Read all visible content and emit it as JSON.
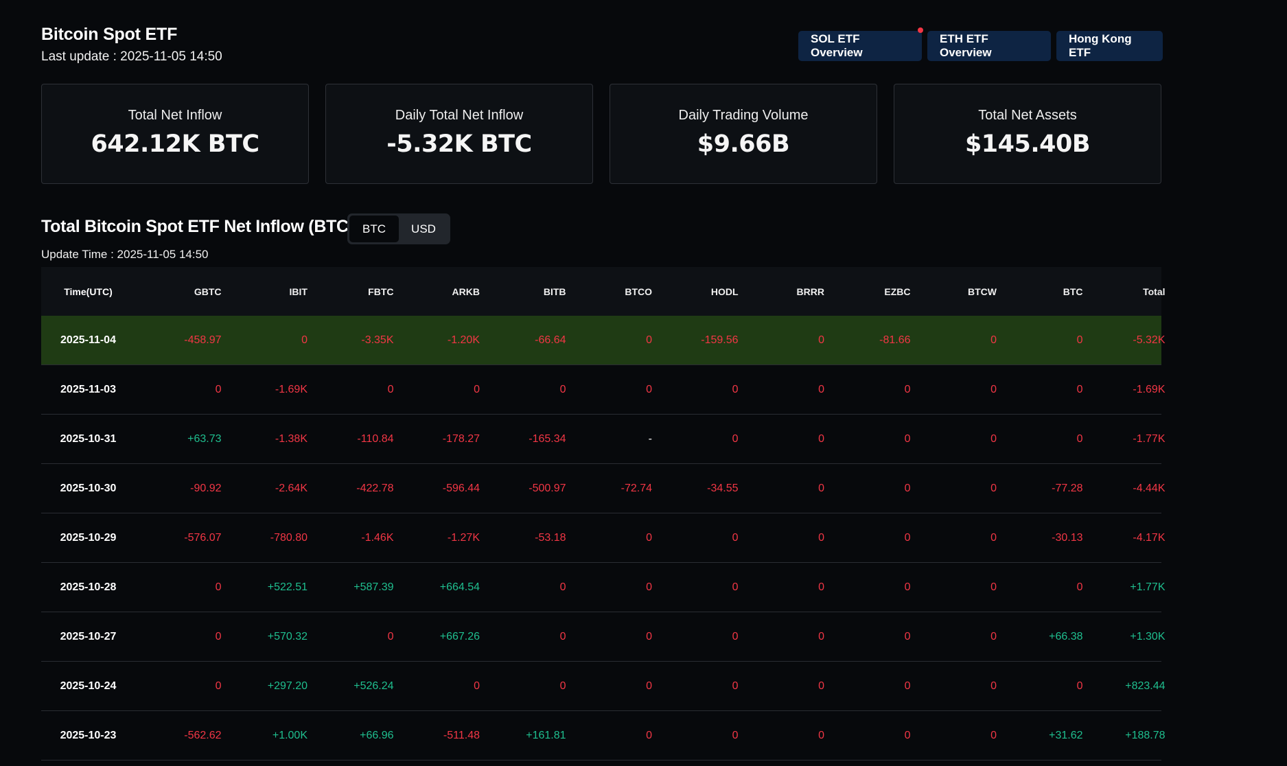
{
  "header": {
    "title": "Bitcoin Spot ETF",
    "last_update": "Last update : 2025-11-05 14:50",
    "nav": [
      {
        "label": "SOL ETF Overview"
      },
      {
        "label": "ETH ETF Overview"
      },
      {
        "label": "Hong Kong ETF"
      }
    ]
  },
  "stats": [
    {
      "label": "Total Net Inflow",
      "value": "642.12K BTC"
    },
    {
      "label": "Daily Total Net Inflow",
      "value": "-5.32K BTC"
    },
    {
      "label": "Daily Trading Volume",
      "value": "$9.66B"
    },
    {
      "label": "Total Net Assets",
      "value": "$145.40B"
    }
  ],
  "section": {
    "title": "Total Bitcoin Spot ETF Net Inflow (BTC)",
    "toggle": [
      "BTC",
      "USD"
    ],
    "toggle_active": "BTC",
    "update_time": "Update Time : 2025-11-05 14:50"
  },
  "colors": {
    "negative": "#f23645",
    "positive": "#1fbf8f",
    "highlight_row": "#1f3b14",
    "nav_button": "#0e2443"
  },
  "table": {
    "columns": [
      "Time(UTC)",
      "GBTC",
      "IBIT",
      "FBTC",
      "ARKB",
      "BITB",
      "BTCO",
      "HODL",
      "BRRR",
      "EZBC",
      "BTCW",
      "BTC",
      "Total"
    ],
    "rows": [
      [
        "2025-11-04",
        "-458.97",
        "0",
        "-3.35K",
        "-1.20K",
        "-66.64",
        "0",
        "-159.56",
        "0",
        "-81.66",
        "0",
        "0",
        "-5.32K"
      ],
      [
        "2025-11-03",
        "0",
        "-1.69K",
        "0",
        "0",
        "0",
        "0",
        "0",
        "0",
        "0",
        "0",
        "0",
        "-1.69K"
      ],
      [
        "2025-10-31",
        "+63.73",
        "-1.38K",
        "-110.84",
        "-178.27",
        "-165.34",
        "-",
        "0",
        "0",
        "0",
        "0",
        "0",
        "-1.77K"
      ],
      [
        "2025-10-30",
        "-90.92",
        "-2.64K",
        "-422.78",
        "-596.44",
        "-500.97",
        "-72.74",
        "-34.55",
        "0",
        "0",
        "0",
        "-77.28",
        "-4.44K"
      ],
      [
        "2025-10-29",
        "-576.07",
        "-780.80",
        "-1.46K",
        "-1.27K",
        "-53.18",
        "0",
        "0",
        "0",
        "0",
        "0",
        "-30.13",
        "-4.17K"
      ],
      [
        "2025-10-28",
        "0",
        "+522.51",
        "+587.39",
        "+664.54",
        "0",
        "0",
        "0",
        "0",
        "0",
        "0",
        "0",
        "+1.77K"
      ],
      [
        "2025-10-27",
        "0",
        "+570.32",
        "0",
        "+667.26",
        "0",
        "0",
        "0",
        "0",
        "0",
        "0",
        "+66.38",
        "+1.30K"
      ],
      [
        "2025-10-24",
        "0",
        "+297.20",
        "+526.24",
        "0",
        "0",
        "0",
        "0",
        "0",
        "0",
        "0",
        "0",
        "+823.44"
      ],
      [
        "2025-10-23",
        "-562.62",
        "+1.00K",
        "+66.96",
        "-511.48",
        "+161.81",
        "0",
        "0",
        "0",
        "0",
        "0",
        "+31.62",
        "+188.78"
      ]
    ],
    "row_colors": [
      [
        "neg",
        "neg",
        "neg",
        "neg",
        "neg",
        "neg",
        "neg",
        "neg",
        "neg",
        "neg",
        "neg",
        "neg"
      ],
      [
        "neg",
        "neg",
        "neg",
        "neg",
        "neg",
        "neg",
        "neg",
        "neg",
        "neg",
        "neg",
        "neg",
        "neg"
      ],
      [
        "pos",
        "neg",
        "neg",
        "neg",
        "neg",
        "neu",
        "neg",
        "neg",
        "neg",
        "neg",
        "neg",
        "neg"
      ],
      [
        "neg",
        "neg",
        "neg",
        "neg",
        "neg",
        "neg",
        "neg",
        "neg",
        "neg",
        "neg",
        "neg",
        "neg"
      ],
      [
        "neg",
        "neg",
        "neg",
        "neg",
        "neg",
        "neg",
        "neg",
        "neg",
        "neg",
        "neg",
        "neg",
        "neg"
      ],
      [
        "neg",
        "pos",
        "pos",
        "pos",
        "neg",
        "neg",
        "neg",
        "neg",
        "neg",
        "neg",
        "neg",
        "pos"
      ],
      [
        "neg",
        "pos",
        "neg",
        "pos",
        "neg",
        "neg",
        "neg",
        "neg",
        "neg",
        "neg",
        "pos",
        "pos"
      ],
      [
        "neg",
        "pos",
        "pos",
        "neg",
        "neg",
        "neg",
        "neg",
        "neg",
        "neg",
        "neg",
        "neg",
        "pos"
      ],
      [
        "neg",
        "pos",
        "pos",
        "neg",
        "pos",
        "neg",
        "neg",
        "neg",
        "neg",
        "neg",
        "pos",
        "pos"
      ]
    ]
  }
}
